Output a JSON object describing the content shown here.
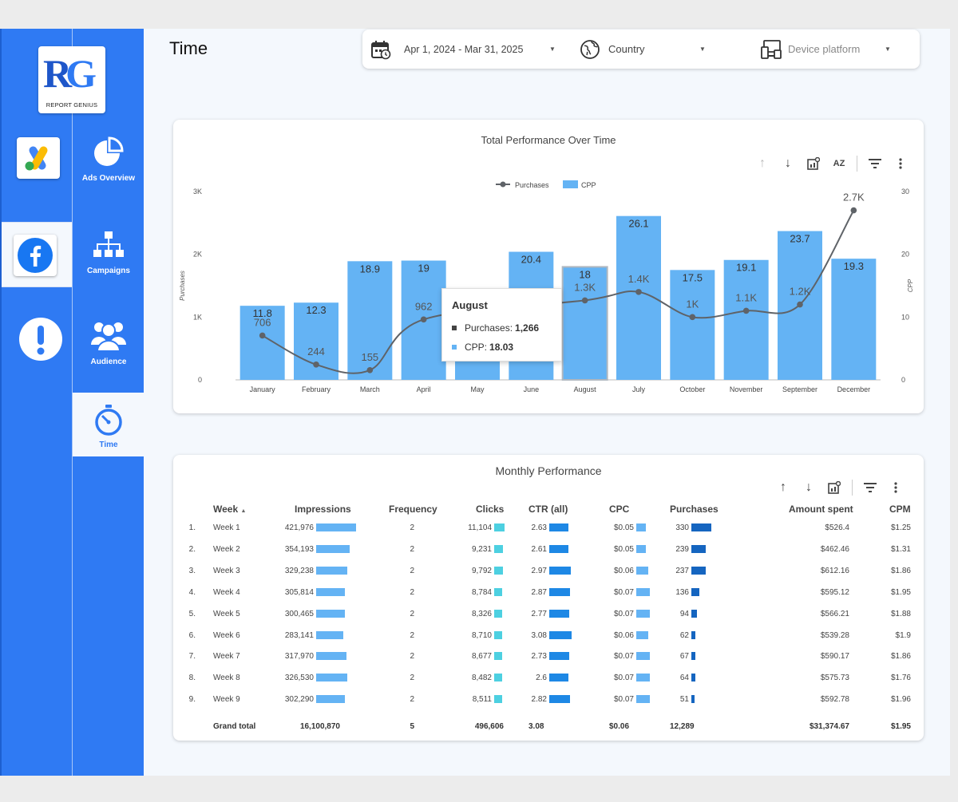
{
  "brand": {
    "logo_text": "RG",
    "logo_sub": "REPORT GENIUS"
  },
  "nav": {
    "items": [
      {
        "label": "Ads Overview"
      },
      {
        "label": "Campaigns"
      },
      {
        "label": "Audience"
      },
      {
        "label": "Time"
      }
    ]
  },
  "page_title": "Time",
  "filters": {
    "date_range": "Apr 1, 2024 - Mar 31, 2025",
    "country": "Country",
    "device": "Device platform"
  },
  "chart_card": {
    "title": "Total Performance Over Time"
  },
  "chart_data": {
    "type": "bar",
    "title": "Total Performance Over Time",
    "categories": [
      "January",
      "February",
      "March",
      "April",
      "May",
      "June",
      "August",
      "July",
      "October",
      "November",
      "September",
      "December"
    ],
    "series": [
      {
        "name": "CPP",
        "kind": "bar",
        "axis": "right",
        "values": [
          11.8,
          12.3,
          18.9,
          19,
          null,
          20.4,
          18,
          26.1,
          17.5,
          19.1,
          23.7,
          19.3
        ],
        "labels": [
          "11.8",
          "12.3",
          "18.9",
          "19",
          "",
          "20.4",
          "18",
          "26.1",
          "17.5",
          "19.1",
          "23.7",
          "19.3"
        ],
        "color": "#64b3f4"
      },
      {
        "name": "Purchases",
        "kind": "line",
        "axis": "left",
        "values": [
          706,
          244,
          155,
          962,
          null,
          null,
          1266,
          1400,
          1000,
          1100,
          1200,
          2700
        ],
        "labels": [
          "706",
          "244",
          "155",
          "962",
          "",
          "",
          "1.3K",
          "1.4K",
          "1K",
          "1.1K",
          "1.2K",
          "2.7K"
        ],
        "color": "#5f6368"
      }
    ],
    "y_left": {
      "label": "Purchases",
      "ticks": [
        "0",
        "1K",
        "2K",
        "3K"
      ],
      "ylim": [
        0,
        3000
      ]
    },
    "y_right": {
      "label": "CPP",
      "ticks": [
        "0",
        "10",
        "20",
        "30"
      ],
      "ylim": [
        0,
        30
      ]
    },
    "legend": "top-center",
    "highlight_index": 6
  },
  "tooltip": {
    "title": "August",
    "purchases_label": "Purchases: ",
    "purchases_value": "1,266",
    "cpp_label": "CPP: ",
    "cpp_value": "18.03"
  },
  "table_card": {
    "title": "Monthly Performance",
    "headers": [
      "Week",
      "Impressions",
      "Frequency",
      "Clicks",
      "CTR (all)",
      "CPC",
      "Purchases",
      "Amount spent",
      "CPM"
    ],
    "sort_indicator": "▲",
    "rows": [
      {
        "n": "1.",
        "week": "Week 1",
        "imp": "421,976",
        "freq": "2",
        "clicks": "11,104",
        "ctr": "2.63",
        "cpc": "$0.05",
        "pur": "330",
        "amt": "$526.4",
        "cpm": "$1.25"
      },
      {
        "n": "2.",
        "week": "Week 2",
        "imp": "354,193",
        "freq": "2",
        "clicks": "9,231",
        "ctr": "2.61",
        "cpc": "$0.05",
        "pur": "239",
        "amt": "$462.46",
        "cpm": "$1.31"
      },
      {
        "n": "3.",
        "week": "Week 3",
        "imp": "329,238",
        "freq": "2",
        "clicks": "9,792",
        "ctr": "2.97",
        "cpc": "$0.06",
        "pur": "237",
        "amt": "$612.16",
        "cpm": "$1.86"
      },
      {
        "n": "4.",
        "week": "Week 4",
        "imp": "305,814",
        "freq": "2",
        "clicks": "8,784",
        "ctr": "2.87",
        "cpc": "$0.07",
        "pur": "136",
        "amt": "$595.12",
        "cpm": "$1.95"
      },
      {
        "n": "5.",
        "week": "Week 5",
        "imp": "300,465",
        "freq": "2",
        "clicks": "8,326",
        "ctr": "2.77",
        "cpc": "$0.07",
        "pur": "94",
        "amt": "$566.21",
        "cpm": "$1.88"
      },
      {
        "n": "6.",
        "week": "Week 6",
        "imp": "283,141",
        "freq": "2",
        "clicks": "8,710",
        "ctr": "3.08",
        "cpc": "$0.06",
        "pur": "62",
        "amt": "$539.28",
        "cpm": "$1.9"
      },
      {
        "n": "7.",
        "week": "Week 7",
        "imp": "317,970",
        "freq": "2",
        "clicks": "8,677",
        "ctr": "2.73",
        "cpc": "$0.07",
        "pur": "67",
        "amt": "$590.17",
        "cpm": "$1.86"
      },
      {
        "n": "8.",
        "week": "Week 8",
        "imp": "326,530",
        "freq": "2",
        "clicks": "8,482",
        "ctr": "2.6",
        "cpc": "$0.07",
        "pur": "64",
        "amt": "$575.73",
        "cpm": "$1.76"
      },
      {
        "n": "9.",
        "week": "Week 9",
        "imp": "302,290",
        "freq": "2",
        "clicks": "8,511",
        "ctr": "2.82",
        "cpc": "$0.07",
        "pur": "51",
        "amt": "$592.78",
        "cpm": "$1.96"
      }
    ],
    "total": {
      "label": "Grand total",
      "imp": "16,100,870",
      "freq": "5",
      "clicks": "496,606",
      "ctr": "3.08",
      "cpc": "$0.06",
      "pur": "12,289",
      "amt": "$31,374.67",
      "cpm": "$1.95"
    }
  },
  "colors": {
    "rail": "#2f7af3",
    "bar_light": "#64b3f4",
    "bar_teal": "#4dd0e1",
    "bar_blue": "#1e88e5",
    "bar_dark": "#1565c0"
  }
}
